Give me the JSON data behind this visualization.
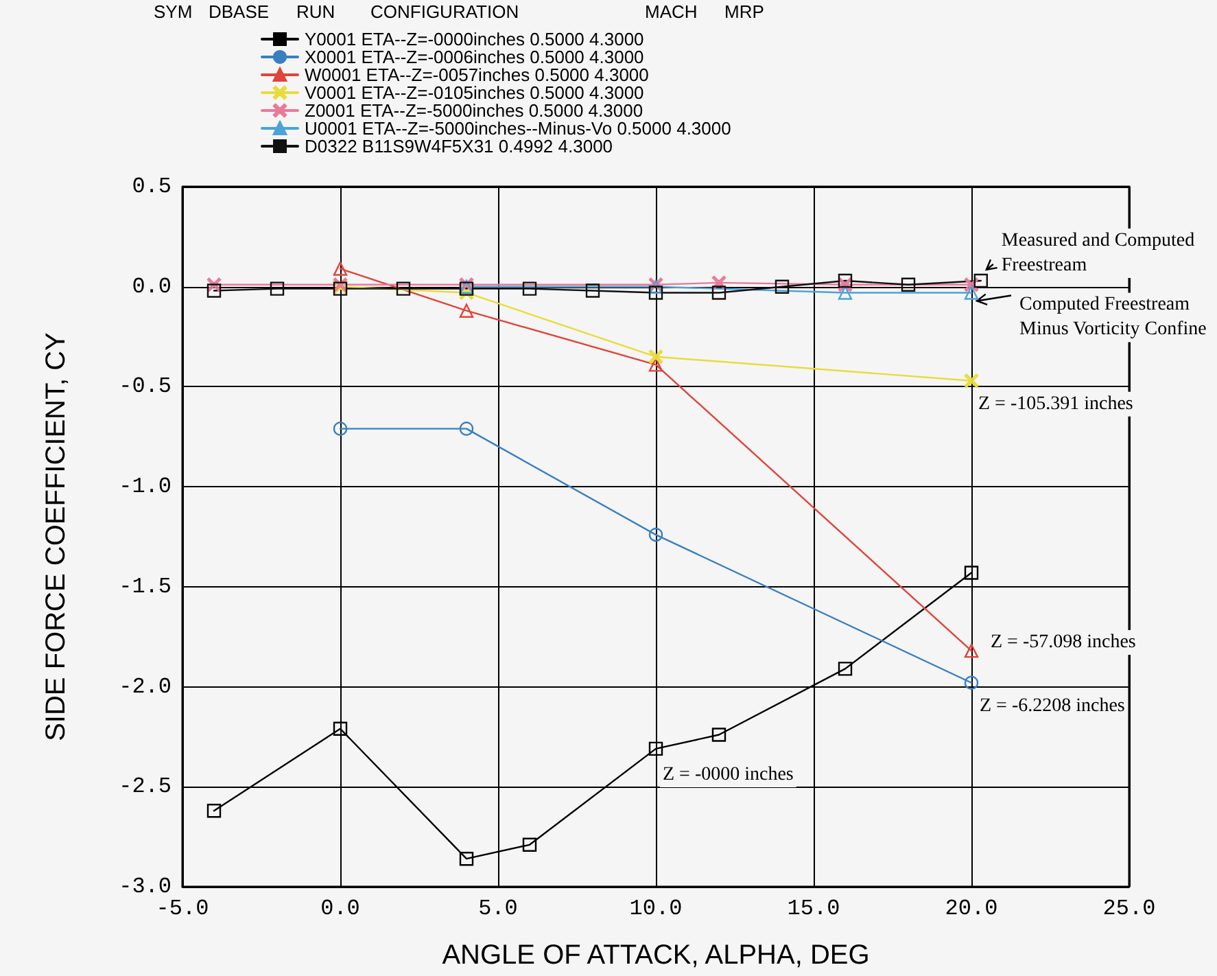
{
  "chart_data": {
    "type": "line",
    "xlabel": "ANGLE OF ATTACK, ALPHA, DEG",
    "ylabel": "SIDE FORCE COEFFICIENT, CY",
    "legend_title": "SYM DBASE RUN CONFIGURATION MACH MRP",
    "legend": "top left",
    "grid": true,
    "xlim": [
      -5,
      25
    ],
    "xticks": [
      {
        "value": -5,
        "label": "-5.0"
      },
      {
        "value": 0,
        "label": "0.0"
      },
      {
        "value": 5,
        "label": "5.0"
      },
      {
        "value": 10,
        "label": "10.0"
      },
      {
        "value": 15,
        "label": "15.0"
      },
      {
        "value": 20,
        "label": "20.0"
      },
      {
        "value": 25,
        "label": "25.0"
      }
    ],
    "ylim": [
      -3,
      0.5
    ],
    "yticks": [
      {
        "value": -3,
        "label": "-3.0"
      },
      {
        "value": -2.5,
        "label": "-2.5"
      },
      {
        "value": -2,
        "label": "-2.0"
      },
      {
        "value": -1.5,
        "label": "-1.5"
      },
      {
        "value": -1,
        "label": "-1.0"
      },
      {
        "value": -0.5,
        "label": "-0.5"
      },
      {
        "value": 0,
        "label": "0.0"
      },
      {
        "value": 0.5,
        "label": "0.5"
      }
    ],
    "series": [
      {
        "name": "Y0001 ETA--Z=-0000inches 0.5000 4.3000",
        "color": "#000000",
        "marker": "square",
        "x": [
          -4,
          0,
          4,
          6,
          10,
          12,
          16,
          20
        ],
        "values": [
          -2.62,
          -2.21,
          -2.86,
          -2.79,
          -2.31,
          -2.24,
          -1.91,
          -1.43
        ]
      },
      {
        "name": "X0001 ETA--Z=-0006inches 0.5000 4.3000",
        "color": "#3a7fc0",
        "marker": "circle",
        "x": [
          0,
          4,
          10,
          20
        ],
        "values": [
          -0.71,
          -0.71,
          -1.24,
          -1.98
        ]
      },
      {
        "name": "W0001 ETA--Z=-0057inches 0.5000 4.3000",
        "color": "#e0443a",
        "marker": "triangle",
        "x": [
          0,
          4,
          10,
          20
        ],
        "values": [
          0.09,
          -0.12,
          -0.39,
          -1.82
        ]
      },
      {
        "name": "V0001 ETA--Z=-0105inches 0.5000 4.3000",
        "color": "#e8dc3a",
        "marker": "cross",
        "x": [
          0,
          4,
          10,
          20
        ],
        "values": [
          0.0,
          -0.03,
          -0.35,
          -0.47
        ]
      },
      {
        "name": "Z0001 ETA--Z=-5000inches 0.5000 4.3000",
        "color": "#e87a9a",
        "marker": "cross",
        "x": [
          -4,
          0,
          4,
          10,
          12,
          16,
          20
        ],
        "values": [
          0.01,
          0.01,
          0.01,
          0.01,
          0.02,
          0.01,
          0.01
        ]
      },
      {
        "name": "U0001 ETA--Z=-5000inches--Minus-Vo 0.5000 4.3000",
        "color": "#4aa3d8",
        "marker": "triangle",
        "x": [
          4,
          10,
          16,
          20
        ],
        "values": [
          0.0,
          0.0,
          -0.03,
          -0.03
        ]
      },
      {
        "name": "D0322 B11S9W4F5X31 0.4992 4.3000",
        "color": "#111111",
        "marker": "square",
        "x": [
          -4,
          -2,
          0,
          2,
          4,
          6,
          8,
          10,
          12,
          14,
          16,
          18,
          20.3
        ],
        "values": [
          -0.02,
          -0.01,
          -0.01,
          -0.01,
          -0.01,
          -0.01,
          -0.02,
          -0.03,
          -0.03,
          0.0,
          0.03,
          0.01,
          0.03
        ]
      }
    ],
    "annotations": [
      {
        "text": "Measured and Computed\nFreestream",
        "x": 20.3,
        "y": 0.03
      },
      {
        "text": "Computed Freestream\nMinus Vorticity Confine",
        "x": 20,
        "y": -0.03
      },
      {
        "text": "Z = -105.391 inches",
        "x": 20,
        "y": -0.47
      },
      {
        "text": "Z = -57.098 inches",
        "x": 20,
        "y": -1.82
      },
      {
        "text": "Z = -6.2208 inches",
        "x": 20,
        "y": -1.98
      },
      {
        "text": "Z = -0000 inches",
        "x": 10,
        "y": -2.31
      }
    ]
  }
}
